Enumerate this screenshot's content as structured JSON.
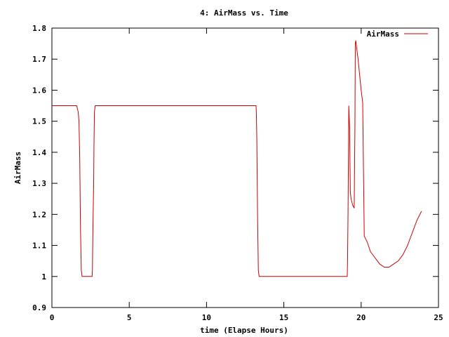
{
  "chart_data": {
    "type": "line",
    "title": "4: AirMass vs. Time",
    "xlabel": "time (Elapse Hours)",
    "ylabel": "AirMass",
    "xlim": [
      0,
      25
    ],
    "ylim": [
      0.9,
      1.8
    ],
    "xticks": [
      0,
      5,
      10,
      15,
      20,
      25
    ],
    "xtick_labels": [
      "0",
      "5",
      "10",
      "15",
      "20",
      "25"
    ],
    "yticks": [
      0.9,
      1.0,
      1.1,
      1.2,
      1.3,
      1.4,
      1.5,
      1.6,
      1.7,
      1.8
    ],
    "ytick_labels": [
      "0.9",
      "1",
      "1.1",
      "1.2",
      "1.3",
      "1.4",
      "1.5",
      "1.6",
      "1.7",
      "1.8"
    ],
    "grid": false,
    "legend_position": "top-right",
    "series": [
      {
        "name": "AirMass",
        "color": "#cc0000",
        "x": [
          0,
          1.6,
          1.7,
          1.75,
          1.8,
          1.85,
          1.9,
          1.95,
          2.6,
          2.62,
          2.65,
          2.7,
          2.72,
          2.75,
          2.8,
          13.2,
          13.22,
          13.25,
          13.3,
          13.35,
          13.4,
          19.1,
          19.12,
          19.15,
          19.2,
          19.25,
          19.3,
          19.35,
          19.45,
          19.55,
          19.6,
          19.62,
          19.65,
          19.7,
          19.8,
          19.9,
          20.0,
          20.1,
          20.2,
          20.4,
          20.6,
          20.9,
          21.2,
          21.5,
          21.8,
          22.1,
          22.4,
          22.7,
          23.0,
          23.3,
          23.6,
          23.9
        ],
        "values": [
          1.55,
          1.55,
          1.53,
          1.5,
          1.38,
          1.15,
          1.02,
          1.0,
          1.0,
          1.02,
          1.15,
          1.3,
          1.42,
          1.53,
          1.55,
          1.55,
          1.53,
          1.45,
          1.2,
          1.02,
          1.0,
          1.0,
          1.05,
          1.2,
          1.55,
          1.48,
          1.27,
          1.25,
          1.23,
          1.22,
          1.5,
          1.75,
          1.76,
          1.74,
          1.7,
          1.65,
          1.6,
          1.56,
          1.13,
          1.11,
          1.08,
          1.06,
          1.04,
          1.03,
          1.03,
          1.04,
          1.05,
          1.07,
          1.1,
          1.14,
          1.18,
          1.21
        ]
      }
    ]
  }
}
